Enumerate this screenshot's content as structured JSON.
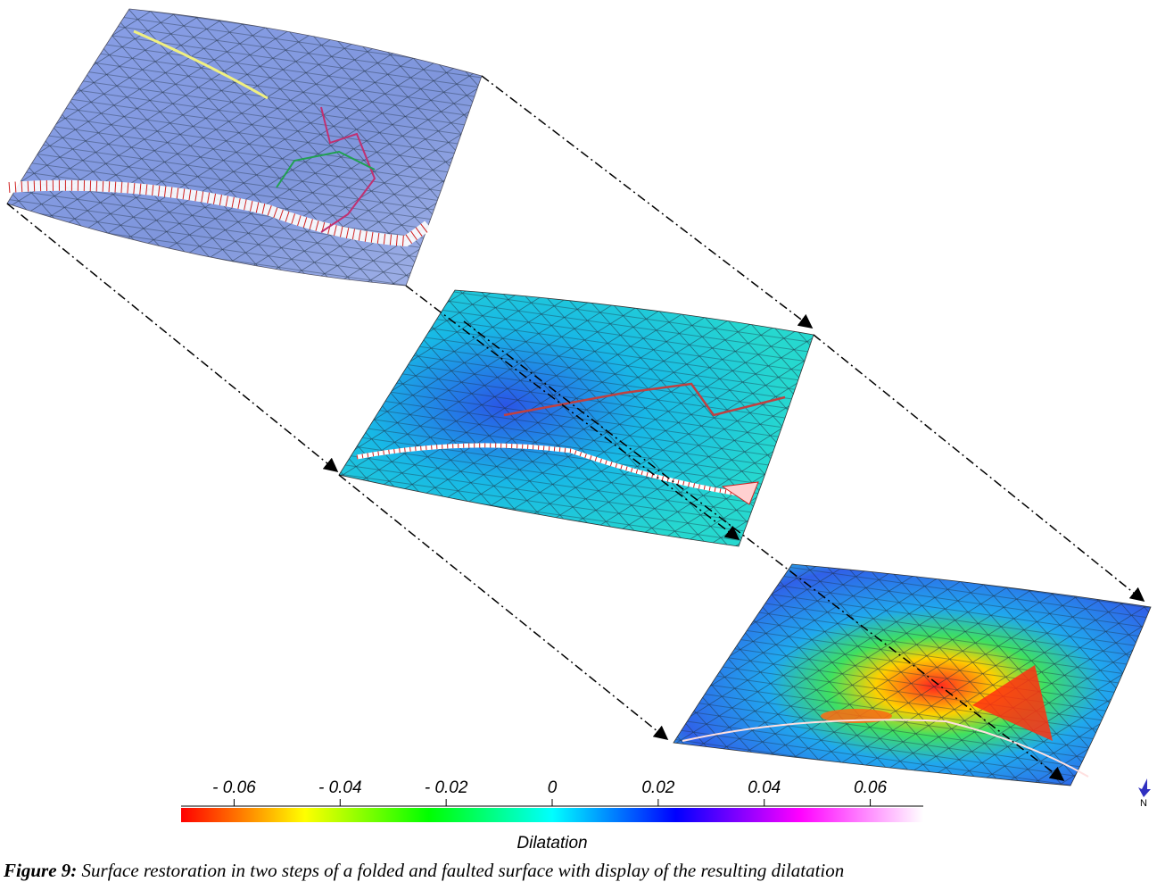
{
  "chart_data": {
    "type": "colorbar",
    "xlabel": "Dilatation",
    "xlim": [
      -0.07,
      0.07
    ],
    "xticks": [
      {
        "value": -0.06,
        "label": "- 0.06"
      },
      {
        "value": -0.04,
        "label": "- 0.04"
      },
      {
        "value": -0.02,
        "label": "- 0.02"
      },
      0,
      0.02,
      0.04,
      0.06
    ],
    "colors": [
      "#ff0000",
      "#ffff00",
      "#00ff00",
      "#00ffff",
      "#0000ff",
      "#ff00ff",
      "#ffffff"
    ]
  },
  "compass": {
    "label": "N"
  },
  "caption": {
    "label": "Figure 9:",
    "text": "Surface restoration in two steps of a folded and faulted surface with display of the resulting dilatation"
  }
}
